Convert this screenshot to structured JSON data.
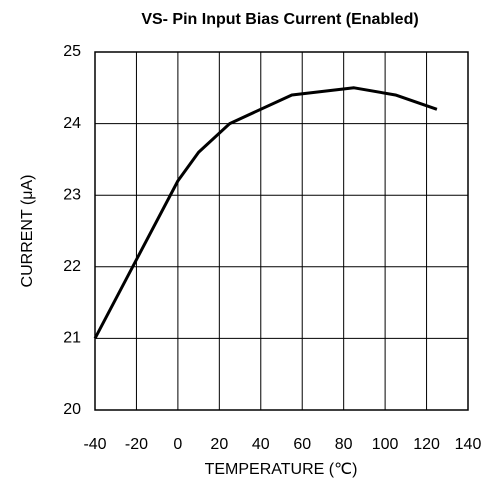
{
  "chart_data": {
    "type": "line",
    "title": "VS- Pin Input Bias Current (Enabled)",
    "x_label": "TEMPERATURE (℃)",
    "y_label": "CURRENT (μA)",
    "x": [
      -40,
      0,
      10,
      25,
      55,
      85,
      105,
      125
    ],
    "series": [
      {
        "name": "Current",
        "color": "#000000",
        "values": [
          21,
          23.2,
          23.6,
          24.0,
          24.4,
          24.5,
          24.4,
          24.2
        ]
      }
    ],
    "xlim": [
      -40,
      140
    ],
    "xticks": [
      -40,
      -20,
      0,
      20,
      40,
      60,
      80,
      100,
      120,
      140
    ],
    "ylim": [
      20,
      25
    ],
    "yticks": [
      20,
      21,
      22,
      23,
      24,
      25
    ],
    "grid": true
  }
}
